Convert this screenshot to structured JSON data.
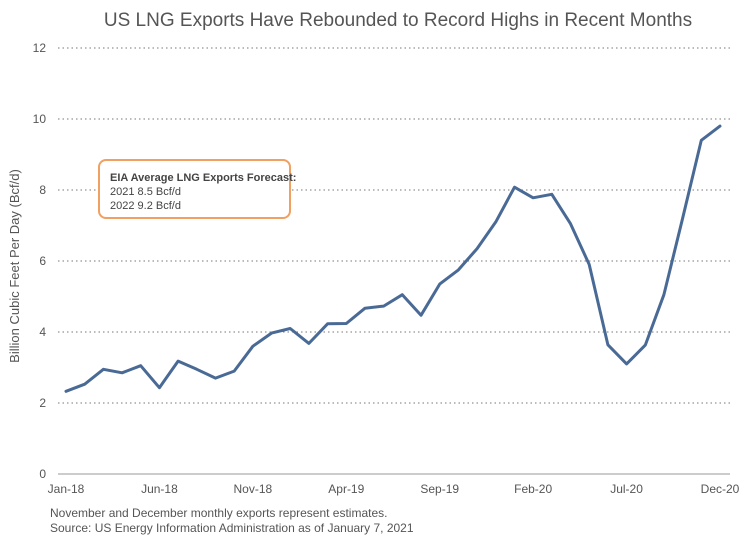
{
  "chart_data": {
    "type": "line",
    "title": "US LNG Exports Have Rebounded to Record Highs in Recent Months",
    "xlabel": "",
    "ylabel": "Billion Cubic Feet Per Day (Bcf/d)",
    "ylim": [
      0,
      12
    ],
    "yticks": [
      "0",
      "2",
      "4",
      "6",
      "8",
      "10",
      "12"
    ],
    "grid": true,
    "x_tick_labels": [
      "Jan-18",
      "Jun-18",
      "Nov-18",
      "Apr-19",
      "Sep-19",
      "Feb-20",
      "Jul-20",
      "Dec-20"
    ],
    "categories": [
      "Jan-18",
      "Feb-18",
      "Mar-18",
      "Apr-18",
      "May-18",
      "Jun-18",
      "Jul-18",
      "Aug-18",
      "Sep-18",
      "Oct-18",
      "Nov-18",
      "Dec-18",
      "Jan-19",
      "Feb-19",
      "Mar-19",
      "Apr-19",
      "May-19",
      "Jun-19",
      "Jul-19",
      "Aug-19",
      "Sep-19",
      "Oct-19",
      "Nov-19",
      "Dec-19",
      "Jan-20",
      "Feb-20",
      "Mar-20",
      "Apr-20",
      "May-20",
      "Jun-20",
      "Jul-20",
      "Aug-20",
      "Sep-20",
      "Oct-20",
      "Nov-20",
      "Dec-20"
    ],
    "series": [
      {
        "name": "US LNG Exports",
        "color": "#4a6a96",
        "values": [
          2.33,
          2.53,
          2.95,
          2.85,
          3.05,
          2.43,
          3.18,
          2.95,
          2.7,
          2.9,
          3.6,
          3.97,
          4.1,
          3.68,
          4.23,
          4.24,
          4.67,
          4.73,
          5.05,
          4.47,
          5.35,
          5.75,
          6.35,
          7.1,
          8.08,
          7.78,
          7.88,
          7.05,
          5.9,
          3.64,
          3.1,
          3.63,
          5.05,
          7.2,
          9.4,
          9.8
        ]
      }
    ],
    "annotation": {
      "heading": "EIA Average LNG Exports Forecast:",
      "lines": [
        "2021 8.5 Bcf/d",
        "2022 9.2 Bcf/d"
      ],
      "border_color": "#f0a060"
    }
  },
  "notes": [
    "November and December monthly exports represent estimates.",
    "Source: US Energy Information Administration as of January 7, 2021"
  ]
}
